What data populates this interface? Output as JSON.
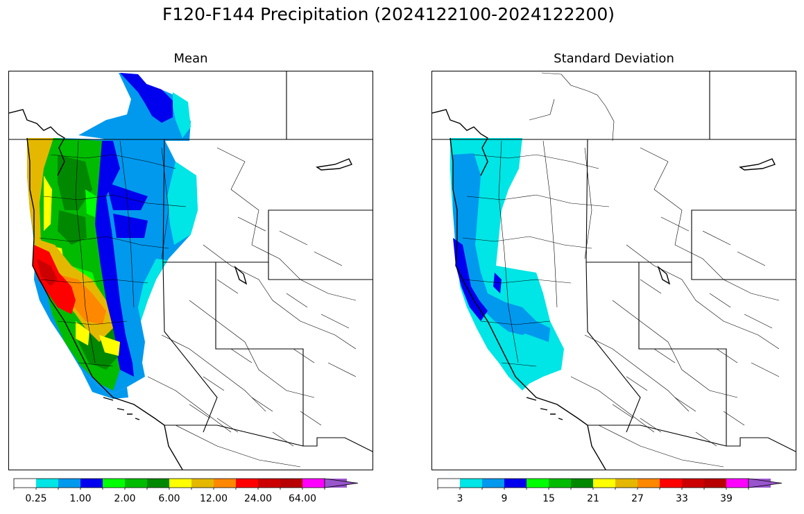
{
  "title": "F120-F144 Precipitation (2024122100-2024122200)",
  "panels": [
    {
      "id": "mean",
      "title": "Mean",
      "colorbar": {
        "colors": [
          "#ffffff",
          "#00e5e5",
          "#0099ee",
          "#0000ee",
          "#00ff00",
          "#00bb00",
          "#008800",
          "#ffff00",
          "#e5b800",
          "#ff8800",
          "#ff0000",
          "#cc0000",
          "#b80000",
          "#ff00ff",
          "#9955cc"
        ],
        "tick_labels": [
          "0.25",
          "1.00",
          "2.00",
          "6.00",
          "12.00",
          "24.00",
          "64.00"
        ],
        "extend": "max"
      }
    },
    {
      "id": "std",
      "title": "Standard Deviation",
      "colorbar": {
        "colors": [
          "#ffffff",
          "#00e5e5",
          "#0099ee",
          "#0000ee",
          "#00ff00",
          "#00bb00",
          "#008800",
          "#ffff00",
          "#e5b800",
          "#ff8800",
          "#ff0000",
          "#cc0000",
          "#b80000",
          "#ff00ff",
          "#9955cc"
        ],
        "tick_labels": [
          "3",
          "9",
          "15",
          "21",
          "27",
          "33",
          "39"
        ],
        "extend": "max"
      }
    }
  ]
}
